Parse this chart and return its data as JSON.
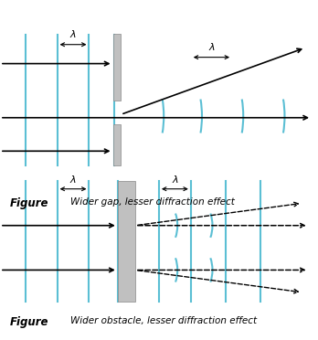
{
  "bg_color": "#ffffff",
  "cyan_color": "#5bbfd4",
  "gray_color": "#aaaaaa",
  "gray_fill": "#b8b8b8",
  "black_color": "#000000",
  "caption1": "Wider gap, lesser diffraction effect",
  "caption2": "Wider obstacle, lesser diffraction effect",
  "label_figure": "Figure",
  "lambda_label": "λ"
}
